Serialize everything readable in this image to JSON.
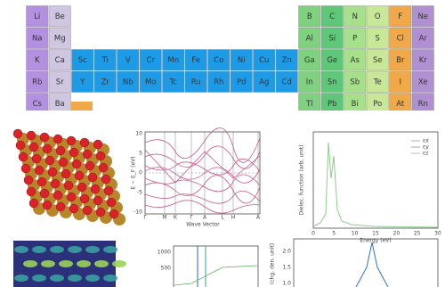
{
  "periodic_table": {
    "rows": [
      [
        "Li",
        "Be",
        "B",
        "C",
        "N",
        "O",
        "F",
        "Ne"
      ],
      [
        "Na",
        "Mg",
        "Al",
        "Si",
        "P",
        "S",
        "Cl",
        "Ar"
      ],
      [
        "K",
        "Ca",
        "Sc",
        "Ti",
        "V",
        "Cr",
        "Mn",
        "Fe",
        "Co",
        "Ni",
        "Cu",
        "Zn",
        "Ga",
        "Ge",
        "As",
        "Se",
        "Br",
        "Kr"
      ],
      [
        "Rb",
        "Sr",
        "Y",
        "Zr",
        "Nb",
        "Mo",
        "Tc",
        "Ru",
        "Rh",
        "Pd",
        "Ag",
        "Cd",
        "In",
        "Sn",
        "Sb",
        "Te",
        "I",
        "Xe"
      ],
      [
        "Cs",
        "Ba",
        "Tl",
        "Pb",
        "Bi",
        "Po",
        "At",
        "Rn"
      ]
    ]
  },
  "band_plot": {
    "y_label": "E − E_F (eV)",
    "x_label": "Wave Vector",
    "y_ticks": [
      "10",
      "5",
      "0",
      "-5",
      "-10"
    ],
    "x_ticks": [
      "Γ",
      "M",
      "K",
      "Γ",
      "A",
      "L",
      "H",
      "A"
    ]
  },
  "dielectric_plot": {
    "y_label": "Dielec. function (arb. unit)",
    "x_label": "Energy (eV)",
    "x_ticks": [
      "0",
      "5",
      "10",
      "15",
      "20",
      "25",
      "30"
    ],
    "legend": [
      "εx",
      "εy",
      "εz"
    ]
  },
  "current_plot": {
    "y_ticks": [
      "1000",
      "500"
    ]
  },
  "density_plot": {
    "y_label": "(chg. den. unit)",
    "y_ticks": [
      "2.0",
      "1.5",
      "1.0"
    ]
  }
}
